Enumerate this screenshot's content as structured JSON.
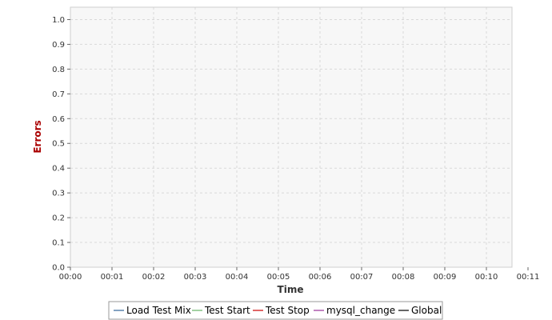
{
  "chart_data": {
    "type": "line",
    "title": "",
    "xlabel": "Time",
    "ylabel": "Errors",
    "x_ticks": [
      "00:00",
      "00:01",
      "00:02",
      "00:03",
      "00:04",
      "00:05",
      "00:06",
      "00:07",
      "00:08",
      "00:09",
      "00:10",
      "00:11"
    ],
    "xlim": [
      "00:00",
      "00:11"
    ],
    "y_ticks": [
      "0.0",
      "0.1",
      "0.2",
      "0.3",
      "0.4",
      "0.5",
      "0.6",
      "0.7",
      "0.8",
      "0.9",
      "1.0"
    ],
    "ylim": [
      0,
      1.05
    ],
    "grid": true,
    "legend_position": "bottom",
    "series": [
      {
        "name": "Load Test Mix",
        "color": "#336699",
        "points": []
      },
      {
        "name": "Test Start",
        "color": "#66b266",
        "points": []
      },
      {
        "name": "Test Stop",
        "color": "#cc0000",
        "points": []
      },
      {
        "name": "mysql_change",
        "color": "#993399",
        "points": []
      },
      {
        "name": "Global",
        "color": "#000000",
        "points": []
      }
    ],
    "colors": {
      "plot_background": "#f7f7f7",
      "grid": "#d9d9d9",
      "axis_title_y": "#aa0000",
      "axis_title_x": "#333333"
    }
  }
}
